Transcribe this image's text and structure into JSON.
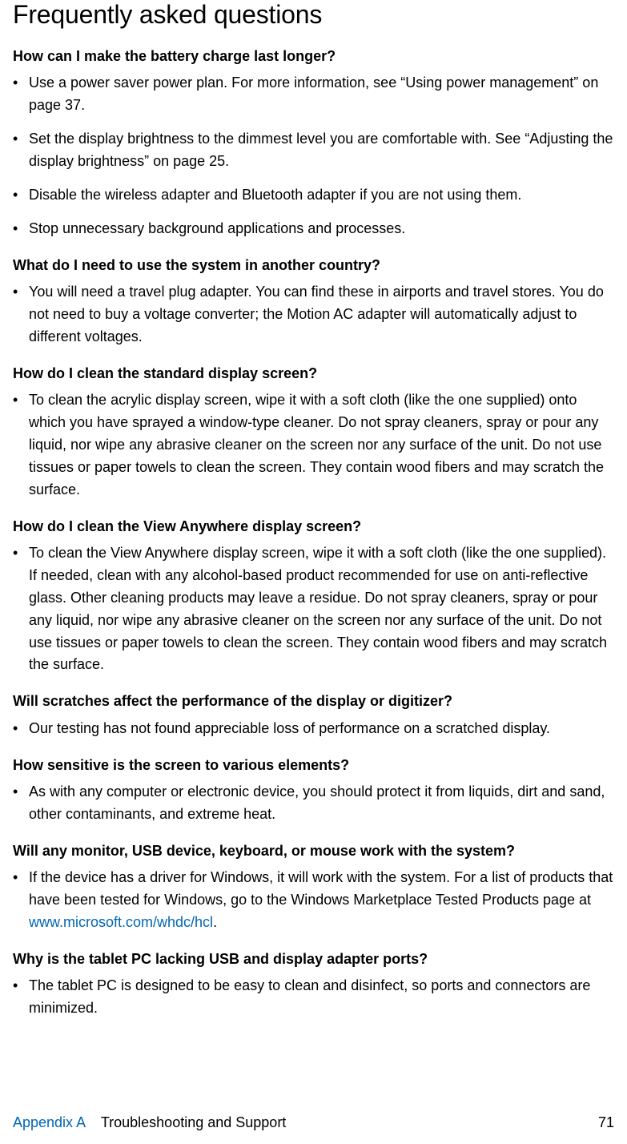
{
  "pageTitle": "Frequently asked questions",
  "colors": {
    "link": "#0066b3",
    "text": "#000000",
    "bg": "#ffffff"
  },
  "fonts": {
    "body_size": 18,
    "title_size": 32,
    "question_weight": 700
  },
  "sections": [
    {
      "question": "How can I make the battery charge last longer?",
      "answers": [
        "Use a power saver power plan. For more information, see “Using power management” on page 37.",
        "Set the display brightness to the dimmest level you are comfortable with. See “Adjusting the display brightness” on page 25.",
        "Disable the wireless adapter and Bluetooth adapter if you are not using them.",
        "Stop unnecessary background applications and processes."
      ]
    },
    {
      "question": "What do I need to use the system in another country?",
      "answers": [
        "You will need a travel plug adapter. You can find these in airports and travel stores. You do not need to buy a voltage converter; the Motion AC adapter will automatically adjust to different voltages."
      ]
    },
    {
      "question": "How do I clean the standard display screen?",
      "answers": [
        "To clean the acrylic display screen, wipe it with a soft cloth (like the one supplied) onto which you have sprayed a window-type cleaner. Do not spray cleaners, spray or pour any liquid, nor wipe any abrasive cleaner on the screen nor any surface of the unit. Do not use tissues or paper towels to clean the screen. They contain wood fibers and may scratch the surface."
      ]
    },
    {
      "question": "How do I clean the View Anywhere display screen?",
      "answers": [
        "To clean the View Anywhere display screen, wipe it with a soft cloth (like the one supplied). If needed, clean with any alcohol-based product recommended for use on anti-reflective glass. Other cleaning products may leave a residue. Do not spray cleaners, spray or pour any liquid, nor wipe any abrasive cleaner on the screen nor any surface of the unit. Do not use tissues or paper towels to clean the screen. They contain wood fibers and may scratch the surface."
      ]
    },
    {
      "question": "Will scratches affect the performance of the display or digitizer?",
      "answers": [
        "Our testing has not found appreciable loss of performance on a scratched display."
      ]
    },
    {
      "question": "How sensitive is the screen to various elements?",
      "answers": [
        "As with any computer or electronic device, you should protect it from liquids, dirt and sand, other contaminants, and extreme heat."
      ]
    },
    {
      "question": "Will any monitor, USB device, keyboard, or mouse work with the system?",
      "answers": [
        {
          "pre": "If the device has a driver for Windows, it will work with the system. For a list of products that have been tested for Windows, go to the Windows Marketplace Tested Products page at ",
          "link": "www.microsoft.com/whdc/hcl",
          "post": "."
        }
      ]
    },
    {
      "question": "Why is the tablet PC lacking USB and display adapter ports?",
      "answers": [
        "The tablet PC is designed to be easy to clean and disinfect, so ports and connectors are minimized."
      ]
    }
  ],
  "footer": {
    "appendix": "Appendix A",
    "title": "Troubleshooting and Support",
    "page": "71"
  }
}
